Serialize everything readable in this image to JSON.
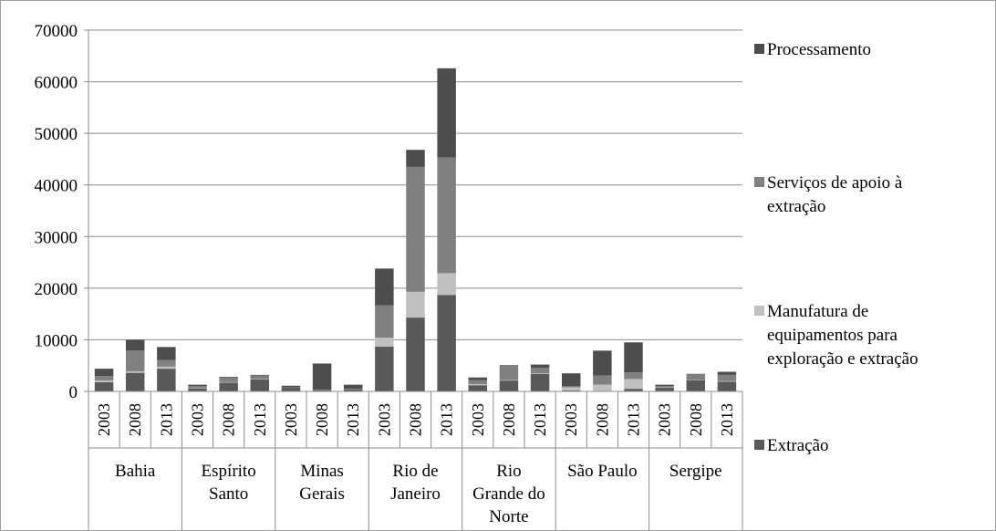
{
  "chart_data": {
    "type": "stacked-bar",
    "title": "",
    "xlabel": "",
    "ylabel": "",
    "ylim": [
      0,
      70000
    ],
    "yticks": [
      "0",
      "10000",
      "20000",
      "30000",
      "40000",
      "50000",
      "60000",
      "70000"
    ],
    "grid": true,
    "legend_position": "right",
    "regions": [
      {
        "name": "Bahia",
        "lines": [
          "Bahia"
        ]
      },
      {
        "name": "Espírito Santo",
        "lines": [
          "Espírito",
          "Santo"
        ]
      },
      {
        "name": "Minas Gerais",
        "lines": [
          "Minas",
          "Gerais"
        ]
      },
      {
        "name": "Rio de Janeiro",
        "lines": [
          "Rio de",
          "Janeiro"
        ]
      },
      {
        "name": "Rio Grande do Norte",
        "lines": [
          "Rio",
          "Grande do",
          "Norte"
        ]
      },
      {
        "name": "São Paulo",
        "lines": [
          "São Paulo"
        ]
      },
      {
        "name": "Sergipe",
        "lines": [
          "Sergipe"
        ]
      }
    ],
    "years": [
      "2003",
      "2008",
      "2013"
    ],
    "series": [
      {
        "name": "Extração",
        "legend_lines": [
          "Extração"
        ],
        "color": "#595959",
        "values": [
          1800,
          3600,
          4400,
          600,
          1700,
          2300,
          700,
          200,
          400,
          8700,
          14300,
          18700,
          1200,
          2100,
          3400,
          200,
          100,
          500,
          700,
          2200,
          1900
        ]
      },
      {
        "name": "Manufatura de equipamentos para exploração e extração",
        "legend_lines": [
          "Manufatura de",
          "equipamentos para",
          "exploração e extração"
        ],
        "color": "#c0c0c0",
        "values": [
          300,
          300,
          400,
          100,
          100,
          100,
          0,
          0,
          0,
          1700,
          5000,
          4200,
          200,
          100,
          100,
          600,
          1200,
          1900,
          100,
          100,
          100
        ]
      },
      {
        "name": "Serviços de apoio à extração",
        "legend_lines": [
          "Serviços de apoio à",
          "extração"
        ],
        "color": "#808080",
        "values": [
          900,
          4000,
          1300,
          300,
          800,
          700,
          100,
          100,
          100,
          6300,
          24200,
          22400,
          800,
          2800,
          1100,
          200,
          1800,
          1300,
          200,
          1000,
          1200
        ]
      },
      {
        "name": "Processamento",
        "legend_lines": [
          "Processamento"
        ],
        "color": "#4d4d4d",
        "values": [
          1400,
          2100,
          2500,
          300,
          200,
          100,
          300,
          5100,
          800,
          7100,
          3300,
          17300,
          500,
          100,
          600,
          2500,
          4800,
          5800,
          300,
          100,
          600
        ]
      }
    ]
  }
}
